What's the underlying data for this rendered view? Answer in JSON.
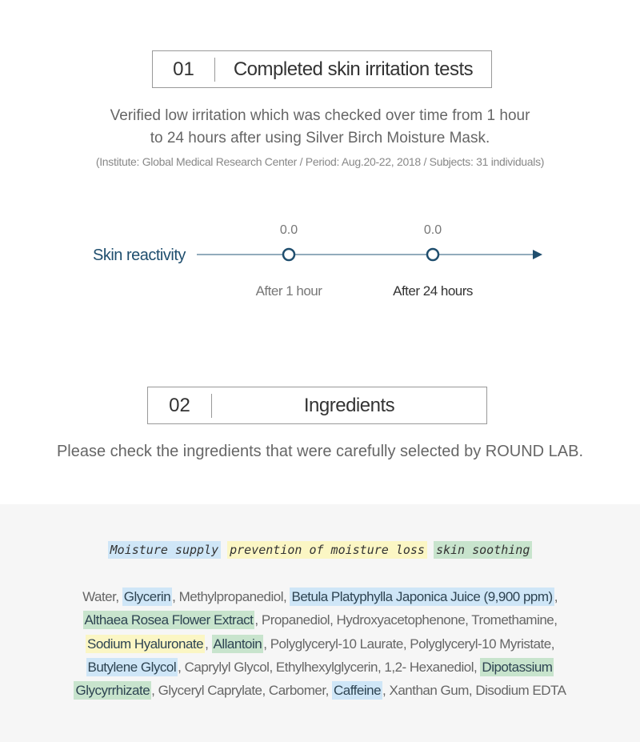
{
  "section1": {
    "number": "01",
    "title": "Completed skin irritation tests",
    "description_lines": [
      "Verified low irritation which was checked over time from 1 hour",
      "to 24 hours after using Silver Birch Moisture Mask."
    ],
    "note": "(Institute: Global Medical Research Center / Period: Aug.20-22, 2018 / Subjects: 31 individuals)"
  },
  "timeline": {
    "label": "Skin reactivity",
    "points": [
      {
        "value": "0.0",
        "label": "After 1 hour"
      },
      {
        "value": "0.0",
        "label": "After 24 hours"
      }
    ],
    "color": "#1f4e6e"
  },
  "section2": {
    "number": "02",
    "title": "Ingredients",
    "description": "Please check the ingredients that were carefully selected by ROUND LAB."
  },
  "legend": [
    {
      "label": "Moisture supply",
      "color": "blue"
    },
    {
      "label": "prevention of moisture loss",
      "color": "yellow"
    },
    {
      "label": "skin soothing",
      "color": "green"
    }
  ],
  "ingredients_lines": [
    [
      {
        "text": "Water, "
      },
      {
        "text": "Glycerin",
        "hl": "blue"
      },
      {
        "text": ", Methylpropanediol, "
      },
      {
        "text": "Betula Platyphylla Japonica Juice (9,900 ppm)",
        "hl": "blue"
      },
      {
        "text": ","
      }
    ],
    [
      {
        "text": "Althaea Rosea Flower Extract",
        "hl": "green"
      },
      {
        "text": ", Propanediol, Hydroxyacetophenone, Tromethamine,"
      }
    ],
    [
      {
        "text": "Sodium Hyaluronate",
        "hl": "yellow"
      },
      {
        "text": ", "
      },
      {
        "text": "Allantoin",
        "hl": "green"
      },
      {
        "text": ", Polyglyceryl-10 Laurate, Polyglyceryl-10 Myristate,"
      }
    ],
    [
      {
        "text": "Butylene Glycol",
        "hl": "blue"
      },
      {
        "text": ", Caprylyl Glycol, Ethylhexylglycerin, 1,2- Hexanediol, "
      },
      {
        "text": "Dipotassium",
        "hl": "green"
      }
    ],
    [
      {
        "text": "Glycyrrhizate",
        "hl": "green"
      },
      {
        "text": ", Glyceryl Caprylate, Carbomer, "
      },
      {
        "text": "Caffeine",
        "hl": "blue"
      },
      {
        "text": ", Xanthan Gum, Disodium EDTA"
      }
    ]
  ]
}
